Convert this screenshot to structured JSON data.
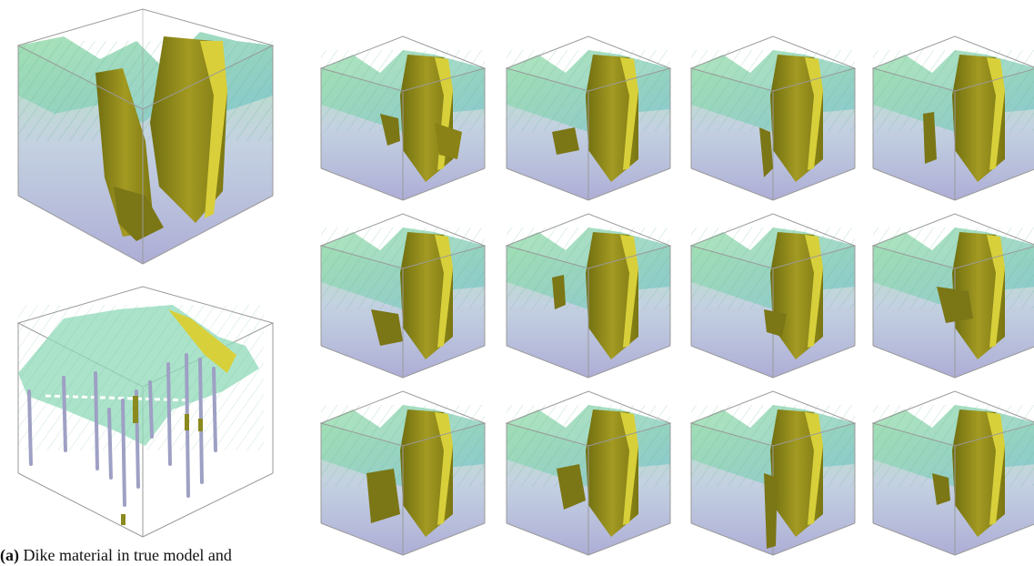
{
  "caption": {
    "tag": "(a)",
    "text": "Dike material in true model and"
  },
  "colors": {
    "box_edge": "#9a9a9a",
    "surface_green": "#8fd9a8",
    "surface_teal": "#7fc8c8",
    "lower_lavender": "#b8b8dc",
    "dike_olive": "#8a8a1e",
    "dike_yellow": "#d8d03a",
    "borehole": "#9ea0c4"
  }
}
